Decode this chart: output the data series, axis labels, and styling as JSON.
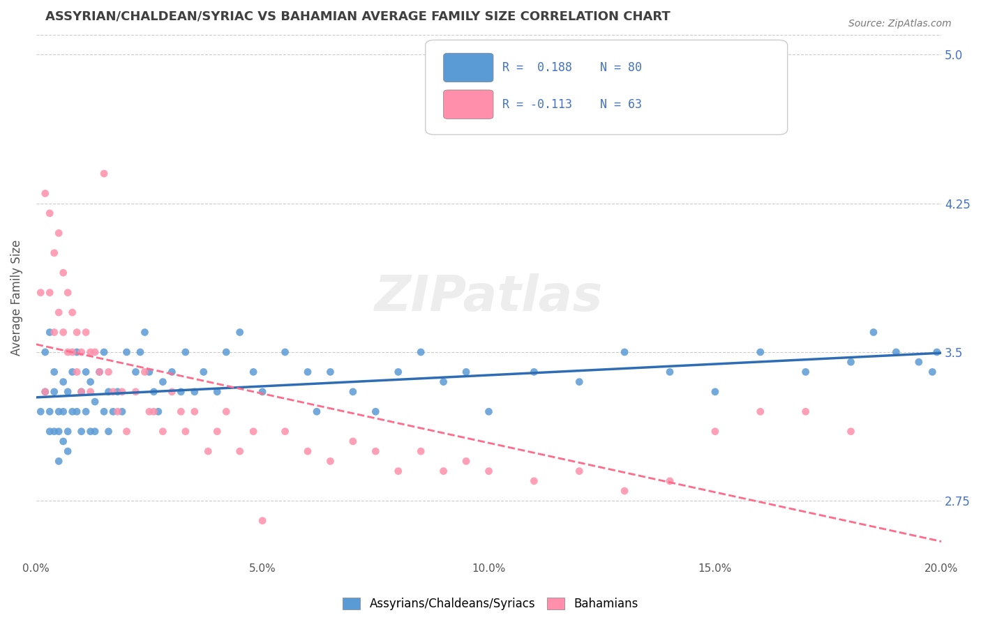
{
  "title": "ASSYRIAN/CHALDEAN/SYRIAC VS BAHAMIAN AVERAGE FAMILY SIZE CORRELATION CHART",
  "source": "Source: ZipAtlas.com",
  "xlabel": "",
  "ylabel": "Average Family Size",
  "xlim": [
    0.0,
    0.2
  ],
  "ylim": [
    2.45,
    5.1
  ],
  "yticks": [
    2.75,
    3.5,
    4.25,
    5.0
  ],
  "xticks": [
    0.0,
    0.05,
    0.1,
    0.15,
    0.2
  ],
  "xticklabels": [
    "0.0%",
    "5.0%",
    "10.0%",
    "15.0%",
    "20.0%"
  ],
  "blue_color": "#5B9BD5",
  "pink_color": "#FF8FAB",
  "trend_blue": "#2E6DB4",
  "trend_pink": "#FF6B8A",
  "R_blue": 0.188,
  "N_blue": 80,
  "R_pink": -0.113,
  "N_pink": 63,
  "legend_labels": [
    "Assyrians/Chaldeans/Syriacs",
    "Bahamians"
  ],
  "watermark": "ZIPatlas",
  "background_color": "#FFFFFF",
  "grid_color": "#CCCCCC",
  "axis_label_color": "#4472C4",
  "title_color": "#404040",
  "blue_scatter_x": [
    0.001,
    0.002,
    0.002,
    0.003,
    0.003,
    0.003,
    0.004,
    0.004,
    0.004,
    0.005,
    0.005,
    0.005,
    0.006,
    0.006,
    0.006,
    0.007,
    0.007,
    0.007,
    0.008,
    0.008,
    0.009,
    0.009,
    0.01,
    0.01,
    0.011,
    0.011,
    0.012,
    0.012,
    0.013,
    0.013,
    0.014,
    0.015,
    0.015,
    0.016,
    0.016,
    0.017,
    0.018,
    0.019,
    0.02,
    0.022,
    0.023,
    0.024,
    0.025,
    0.026,
    0.027,
    0.028,
    0.03,
    0.032,
    0.033,
    0.035,
    0.037,
    0.04,
    0.042,
    0.045,
    0.048,
    0.05,
    0.055,
    0.06,
    0.062,
    0.065,
    0.07,
    0.075,
    0.08,
    0.085,
    0.09,
    0.095,
    0.1,
    0.11,
    0.12,
    0.13,
    0.14,
    0.15,
    0.16,
    0.17,
    0.18,
    0.185,
    0.19,
    0.195,
    0.198,
    0.199
  ],
  "blue_scatter_y": [
    3.2,
    3.5,
    3.3,
    3.6,
    3.2,
    3.1,
    3.4,
    3.3,
    3.1,
    3.2,
    3.1,
    2.95,
    3.35,
    3.2,
    3.05,
    3.3,
    3.1,
    3.0,
    3.4,
    3.2,
    3.5,
    3.2,
    3.3,
    3.1,
    3.4,
    3.2,
    3.35,
    3.1,
    3.25,
    3.1,
    3.4,
    3.5,
    3.2,
    3.3,
    3.1,
    3.2,
    3.3,
    3.2,
    3.5,
    3.4,
    3.5,
    3.6,
    3.4,
    3.3,
    3.2,
    3.35,
    3.4,
    3.3,
    3.5,
    3.3,
    3.4,
    3.3,
    3.5,
    3.6,
    3.4,
    3.3,
    3.5,
    3.4,
    3.2,
    3.4,
    3.3,
    3.2,
    3.4,
    3.5,
    3.35,
    3.4,
    3.2,
    3.4,
    3.35,
    3.5,
    3.4,
    3.3,
    3.5,
    3.4,
    3.45,
    3.6,
    3.5,
    3.45,
    3.4,
    3.5
  ],
  "pink_scatter_x": [
    0.001,
    0.002,
    0.002,
    0.003,
    0.003,
    0.004,
    0.004,
    0.005,
    0.005,
    0.006,
    0.006,
    0.007,
    0.007,
    0.008,
    0.008,
    0.009,
    0.009,
    0.01,
    0.01,
    0.011,
    0.012,
    0.012,
    0.013,
    0.014,
    0.015,
    0.016,
    0.017,
    0.018,
    0.019,
    0.02,
    0.022,
    0.024,
    0.025,
    0.026,
    0.028,
    0.03,
    0.032,
    0.033,
    0.035,
    0.038,
    0.04,
    0.042,
    0.045,
    0.048,
    0.05,
    0.055,
    0.06,
    0.065,
    0.07,
    0.075,
    0.08,
    0.085,
    0.09,
    0.095,
    0.1,
    0.11,
    0.12,
    0.13,
    0.14,
    0.15,
    0.16,
    0.17,
    0.18
  ],
  "pink_scatter_y": [
    3.8,
    4.3,
    3.3,
    4.2,
    3.8,
    4.0,
    3.6,
    4.1,
    3.7,
    3.9,
    3.6,
    3.8,
    3.5,
    3.7,
    3.5,
    3.6,
    3.4,
    3.5,
    3.3,
    3.6,
    3.5,
    3.3,
    3.5,
    3.4,
    4.4,
    3.4,
    3.3,
    3.2,
    3.3,
    3.1,
    3.3,
    3.4,
    3.2,
    3.2,
    3.1,
    3.3,
    3.2,
    3.1,
    3.2,
    3.0,
    3.1,
    3.2,
    3.0,
    3.1,
    2.65,
    3.1,
    3.0,
    2.95,
    3.05,
    3.0,
    2.9,
    3.0,
    2.9,
    2.95,
    2.9,
    2.85,
    2.9,
    2.8,
    2.85,
    3.1,
    3.2,
    3.2,
    3.1
  ]
}
